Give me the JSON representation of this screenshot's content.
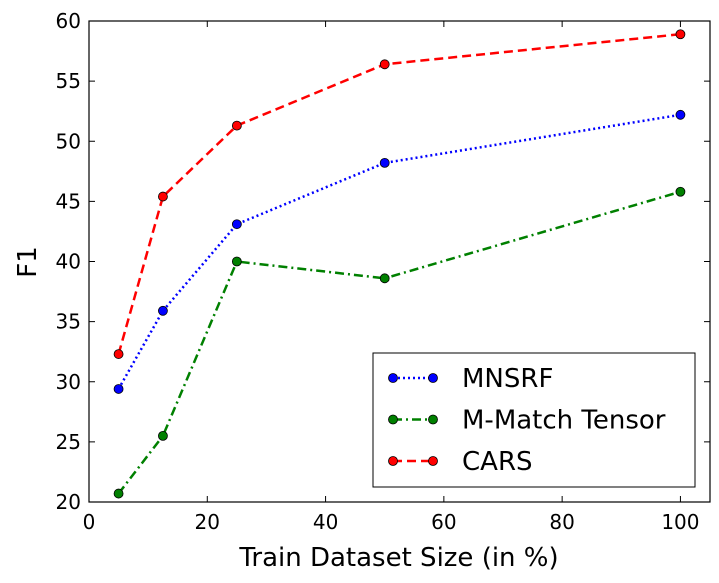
{
  "chart_data": {
    "type": "line",
    "title": "",
    "xlabel": "Train Dataset Size (in %)",
    "ylabel": "F1",
    "xlim": [
      0,
      105
    ],
    "ylim": [
      20,
      60
    ],
    "xticks": [
      0,
      20,
      40,
      60,
      80,
      100
    ],
    "yticks": [
      20,
      25,
      30,
      35,
      40,
      45,
      50,
      55,
      60
    ],
    "grid": false,
    "legend_position": "bottom-right",
    "x": [
      5,
      12.5,
      25,
      50,
      100
    ],
    "series": [
      {
        "name": "MNSRF",
        "values": [
          29.4,
          35.9,
          43.1,
          48.2,
          52.2
        ],
        "color": "#0000ff",
        "style": "dotted"
      },
      {
        "name": "M-Match Tensor",
        "values": [
          20.7,
          25.5,
          40.0,
          38.6,
          45.8
        ],
        "color": "#008000",
        "style": "dashdot"
      },
      {
        "name": "CARS",
        "values": [
          32.3,
          45.4,
          51.3,
          56.4,
          58.9
        ],
        "color": "#ff0000",
        "style": "dashed"
      }
    ]
  }
}
